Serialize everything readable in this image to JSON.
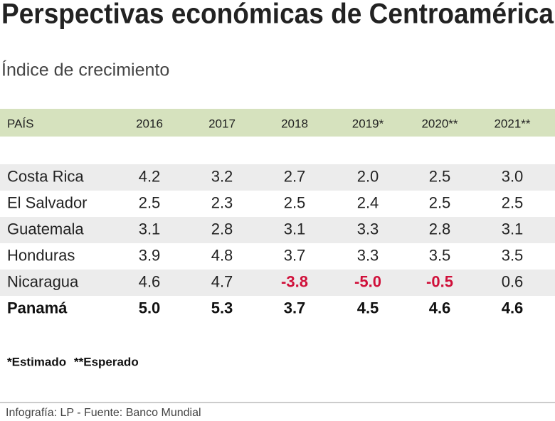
{
  "title": "Perspectivas económicas de Centroamérica",
  "subtitle": "Índice de crecimiento",
  "table": {
    "header": [
      "PAÍS",
      "2016",
      "2017",
      "2018",
      "2019*",
      "2020**",
      "2021**"
    ],
    "rows": [
      [
        "Costa Rica",
        "4.2",
        "3.2",
        "2.7",
        "2.0",
        "2.5",
        "3.0"
      ],
      [
        "El Salvador",
        "2.5",
        "2.3",
        "2.5",
        "2.4",
        "2.5",
        "2.5"
      ],
      [
        "Guatemala",
        "3.1",
        "2.8",
        "3.1",
        "3.3",
        "2.8",
        "3.1"
      ],
      [
        "Honduras",
        "3.9",
        "4.8",
        "3.7",
        "3.3",
        "3.5",
        "3.5"
      ],
      [
        "Nicaragua",
        "4.6",
        "4.7",
        "-3.8",
        "-5.0",
        "-0.5",
        "0.6"
      ],
      [
        "Panamá",
        "5.0",
        "5.3",
        "3.7",
        "4.5",
        "4.6",
        "4.6"
      ]
    ]
  },
  "notes": [
    "*Estimado",
    "**Esperado"
  ],
  "source": "Infografía: LP - Fuente: Banco Mundial"
}
